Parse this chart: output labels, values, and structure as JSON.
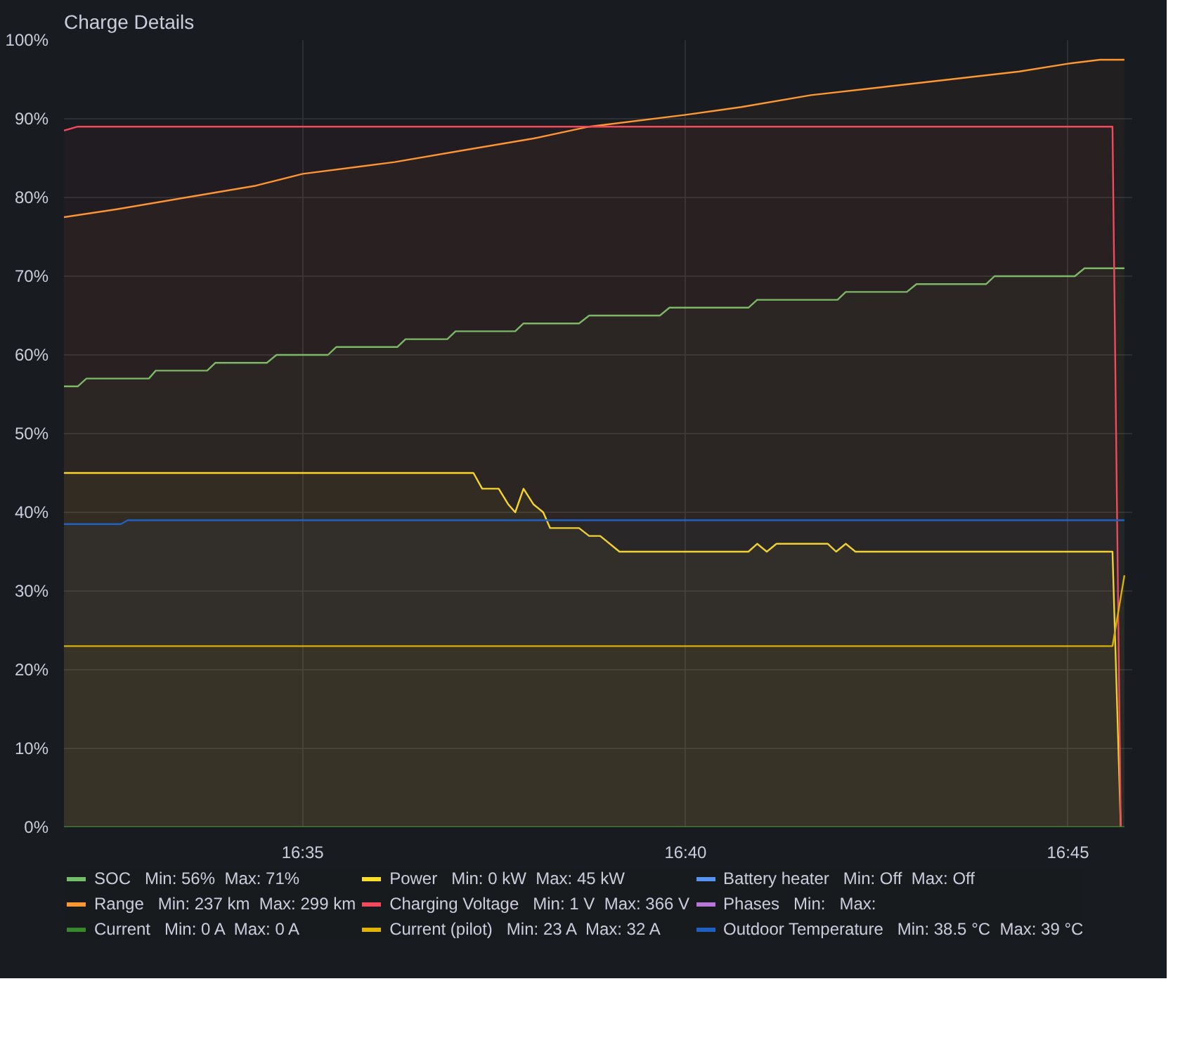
{
  "chart_data": {
    "type": "area",
    "title": "Charge Details",
    "xlim": [
      16.5313,
      16.764
    ],
    "ylim": [
      0,
      100
    ],
    "xticks": [
      {
        "value": 16.5833,
        "label": "16:35"
      },
      {
        "value": 16.6667,
        "label": "16:40"
      },
      {
        "value": 16.75,
        "label": "16:45"
      }
    ],
    "yticks": [
      {
        "value": 0,
        "label": "0%"
      },
      {
        "value": 10,
        "label": "10%"
      },
      {
        "value": 20,
        "label": "20%"
      },
      {
        "value": 30,
        "label": "30%"
      },
      {
        "value": 40,
        "label": "40%"
      },
      {
        "value": 50,
        "label": "50%"
      },
      {
        "value": 60,
        "label": "60%"
      },
      {
        "value": 70,
        "label": "70%"
      },
      {
        "value": 80,
        "label": "80%"
      },
      {
        "value": 90,
        "label": "90%"
      },
      {
        "value": 100,
        "label": "100%"
      }
    ],
    "grid": true,
    "legend": "bottom",
    "series": [
      {
        "name": "SOC   Min: 56%  Max: 71%",
        "color": "#73bf69",
        "x": [
          16.5313,
          16.5343,
          16.5362,
          16.5498,
          16.5513,
          16.5625,
          16.5643,
          16.5755,
          16.5776,
          16.5888,
          16.5906,
          16.6039,
          16.6057,
          16.6148,
          16.6166,
          16.6296,
          16.6314,
          16.6435,
          16.6457,
          16.6611,
          16.6632,
          16.6804,
          16.6823,
          16.6998,
          16.7016,
          16.7149,
          16.717,
          16.7322,
          16.734,
          16.7515,
          16.7536,
          16.7623
        ],
        "values": [
          56,
          56,
          57,
          57,
          58,
          58,
          59,
          59,
          60,
          60,
          61,
          61,
          62,
          62,
          63,
          63,
          64,
          64,
          65,
          65,
          66,
          66,
          67,
          67,
          68,
          68,
          69,
          69,
          70,
          70,
          71,
          71
        ]
      },
      {
        "name": "Power   Min: 0 kW  Max: 45 kW",
        "color": "#fade2a",
        "x": [
          16.5313,
          16.6205,
          16.6224,
          16.626,
          16.6281,
          16.6296,
          16.6314,
          16.6336,
          16.6357,
          16.6372,
          16.6435,
          16.6457,
          16.6481,
          16.6523,
          16.6804,
          16.6823,
          16.6844,
          16.6865,
          16.6977,
          16.6995,
          16.7016,
          16.7037,
          16.7597,
          16.7615
        ],
        "values": [
          45,
          45,
          43,
          43,
          41,
          40,
          43,
          41,
          40,
          38,
          38,
          37,
          37,
          35,
          35,
          36,
          35,
          36,
          36,
          35,
          36,
          35,
          35,
          0
        ]
      },
      {
        "name": "Battery heater   Min: Off  Max: Off",
        "color": "#5794f2",
        "type": "line"
      },
      {
        "name": "Range   Min: 237 km  Max: 299 km",
        "color": "#ff9830",
        "x": [
          16.5313,
          16.5428,
          16.5579,
          16.5731,
          16.5833,
          16.6033,
          16.6184,
          16.6336,
          16.6457,
          16.6667,
          16.6789,
          16.694,
          16.7092,
          16.7243,
          16.7394,
          16.75,
          16.757,
          16.7623
        ],
        "values": [
          77.5,
          78.5,
          80,
          81.5,
          83,
          84.5,
          86,
          87.5,
          89,
          90.5,
          91.5,
          93,
          94,
          95,
          96,
          97,
          97.5,
          97.5
        ]
      },
      {
        "name": "Charging Voltage   Min: 1 V  Max: 366 V",
        "color": "#f2495c",
        "x": [
          16.5313,
          16.5343,
          16.7597,
          16.7615
        ],
        "values": [
          88.5,
          89,
          89,
          0
        ]
      },
      {
        "name": "Phases   Min:   Max:",
        "color": "#b877d9",
        "type": "line"
      },
      {
        "name": "Current   Min: 0 A  Max: 0 A",
        "color": "#37872d",
        "type": "line",
        "x": [
          16.5313,
          16.7623
        ],
        "values": [
          0,
          0
        ]
      },
      {
        "name": "Current (pilot)   Min: 23 A  Max: 32 A",
        "color": "#e0b400",
        "x": [
          16.5313,
          16.7597,
          16.7623
        ],
        "values": [
          23,
          23,
          32
        ]
      },
      {
        "name": "Outdoor Temperature   Min: 38.5 °C  Max: 39 °C",
        "color": "#1f60c4",
        "x": [
          16.5313,
          16.5437,
          16.5452,
          16.7623
        ],
        "values": [
          38.5,
          38.5,
          39,
          39
        ]
      }
    ]
  }
}
